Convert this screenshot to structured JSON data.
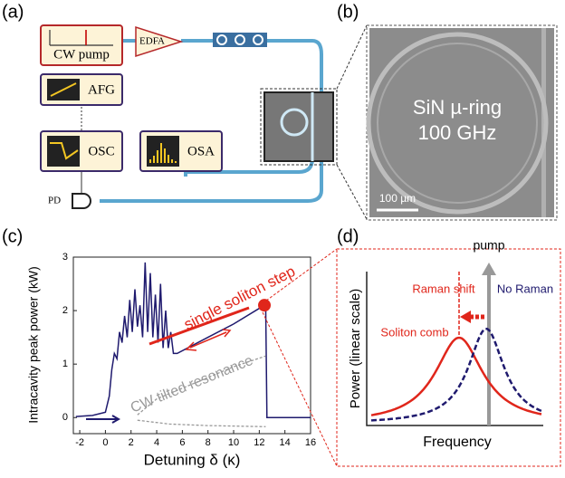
{
  "panels": {
    "a": "(a)",
    "b": "(b)",
    "c": "(c)",
    "d": "(d)"
  },
  "setup": {
    "cw_pump": "CW pump",
    "edfa": "EDFA",
    "afg": "AFG",
    "osc": "OSC",
    "osa": "OSA",
    "pd": "PD"
  },
  "micrograph": {
    "line1": "SiN µ-ring",
    "line2": "100 GHz",
    "scale_bar": "100 µm"
  },
  "chart_data": {
    "type": "line",
    "xlabel": "Detuning δ (κ)",
    "ylabel": "Intracavity peak power (kW)",
    "xlim": [
      -2.5,
      16
    ],
    "ylim": [
      -0.3,
      3
    ],
    "xticks": [
      -2,
      0,
      2,
      4,
      6,
      8,
      10,
      12,
      14,
      16
    ],
    "yticks": [
      0,
      1,
      2,
      3
    ],
    "annotations": [
      "single soliton step",
      "CW tilted resonance"
    ],
    "series": [
      {
        "color": "#1f1a6e",
        "x": [
          -2.3,
          -1,
          0,
          0.3,
          0.5,
          0.7,
          0.9,
          1.1,
          1.3,
          1.5,
          1.7,
          1.9,
          2.1,
          2.3,
          2.5,
          2.7,
          2.9,
          3.1,
          3.3,
          3.5,
          3.7,
          3.9,
          4.1,
          4.3,
          4.5,
          4.7,
          4.9,
          5.1,
          5.3,
          5.6,
          8,
          10,
          12.4,
          12.5,
          12.6,
          14,
          16
        ],
        "values": [
          0.02,
          0.04,
          0.1,
          0.4,
          0.9,
          1.2,
          1.1,
          1.6,
          1.4,
          1.9,
          1.5,
          2.2,
          1.6,
          2.4,
          1.7,
          2.1,
          1.5,
          2.9,
          1.6,
          2.7,
          1.5,
          2.3,
          1.4,
          2.5,
          1.3,
          2.0,
          1.3,
          1.6,
          1.2,
          1.2,
          1.5,
          1.75,
          2.1,
          2.15,
          0,
          0,
          0
        ]
      },
      {
        "color": "#999999",
        "x": [
          2.5,
          4,
          6,
          8,
          10,
          12.5
        ],
        "values": [
          0.05,
          0.35,
          0.55,
          0.75,
          0.95,
          1.15
        ]
      },
      {
        "color": "#999999",
        "x": [
          2.5,
          5,
          8,
          12.5
        ],
        "values": [
          -0.05,
          -0.12,
          -0.15,
          -0.17
        ]
      }
    ],
    "marker": {
      "x": 12.4,
      "y": 2.1,
      "color": "#e0261b"
    }
  },
  "spectrum": {
    "pump": "pump",
    "raman_shift": "Raman shift",
    "no_raman": "No Raman",
    "soliton_comb": "Soliton comb",
    "ylabel": "Power (linear scale)",
    "xlabel": "Frequency"
  }
}
